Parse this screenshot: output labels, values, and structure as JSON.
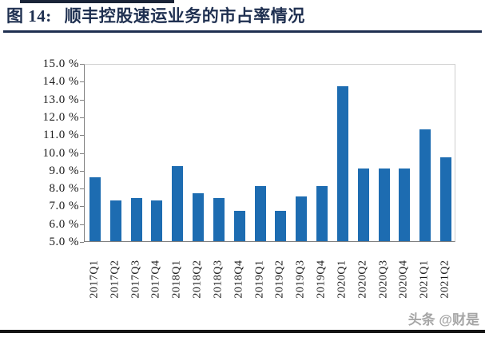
{
  "header": {
    "figure_label": "图 14:",
    "title": "顺丰控股速运业务的市占率情况",
    "accent_color": "#1e2f50"
  },
  "chart_data": {
    "type": "bar",
    "title": "顺丰控股速运业务的市占率情况",
    "categories": [
      "2017Q1",
      "2017Q2",
      "2017Q3",
      "2017Q4",
      "2018Q1",
      "2018Q2",
      "2018Q3",
      "2018Q4",
      "2019Q1",
      "2019Q2",
      "2019Q3",
      "2019Q4",
      "2020Q1",
      "2020Q2",
      "2020Q3",
      "2020Q4",
      "2021Q1",
      "2021Q2"
    ],
    "values": [
      8.6,
      7.3,
      7.4,
      7.3,
      9.2,
      7.7,
      7.4,
      6.7,
      8.1,
      6.7,
      7.5,
      8.1,
      13.7,
      9.1,
      9.1,
      9.1,
      11.3,
      9.7
    ],
    "unit": "%",
    "ylim": [
      5,
      15
    ],
    "y_tick_interval": 1,
    "y_tick_labels": [
      "15.0 %",
      "14.0 %",
      "13.0 %",
      "12.0 %",
      "11.0 %",
      "10.0 %",
      "9.0 %",
      "8.0 %",
      "7.0 %",
      "6.0 %",
      "5.0 %"
    ],
    "xlabel": "",
    "ylabel": "",
    "grid": false,
    "legend": "none",
    "bar_color": "#1d6cb1"
  },
  "watermark": {
    "text": "头条 @财是",
    "color": "#a6a6a6"
  }
}
